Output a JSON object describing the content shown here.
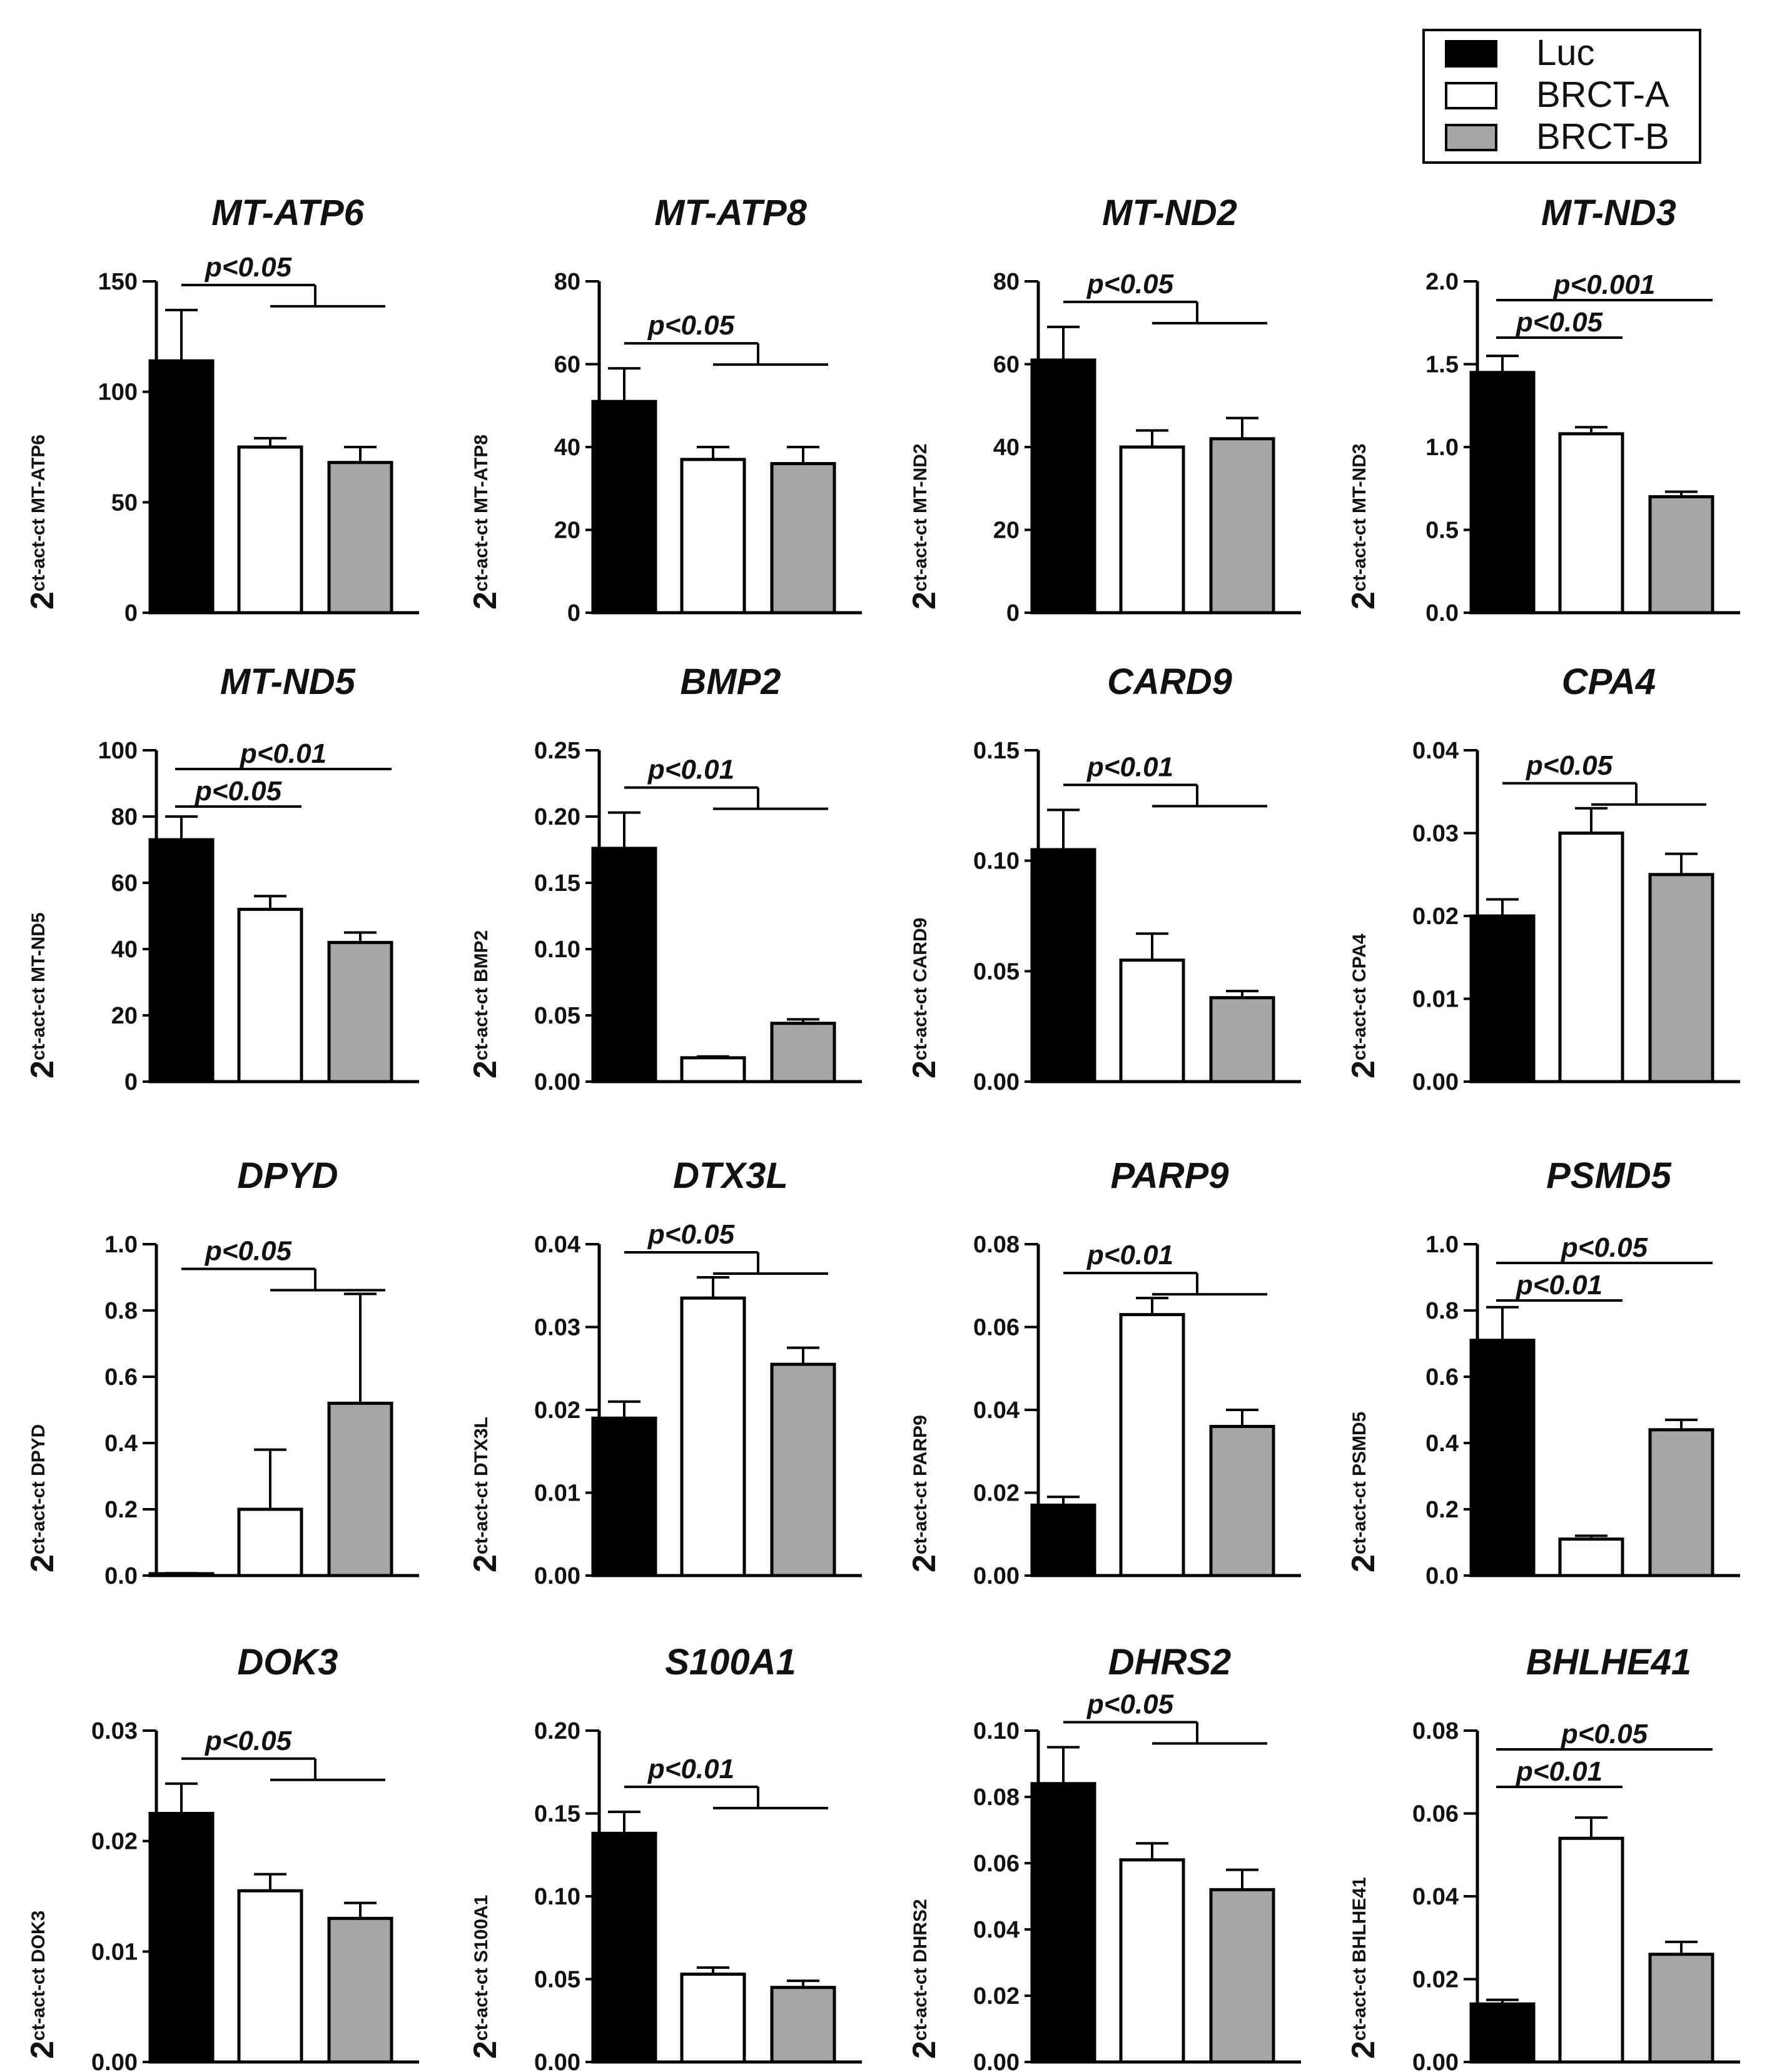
{
  "legend": {
    "items": [
      {
        "label": "Luc",
        "color": "#000000"
      },
      {
        "label": "BRCT-A",
        "color": "#ffffff"
      },
      {
        "label": "BRCT-B",
        "color": "#a6a6a6"
      }
    ]
  },
  "chart_data": [
    {
      "type": "bar",
      "title": "MT-ATP6",
      "ylabel_prefix": "2",
      "ylabel": "ct-act-ct MT-ATP6",
      "categories": [
        "Luc",
        "BRCT-A",
        "BRCT-B"
      ],
      "values": [
        114,
        75,
        68
      ],
      "errors": [
        23,
        4,
        7
      ],
      "ylim": [
        0,
        150
      ],
      "yticks": [
        "0",
        "50",
        "100",
        "150"
      ],
      "significance": [
        {
          "label": "p<0.05",
          "type": "bracket"
        }
      ]
    },
    {
      "type": "bar",
      "title": "MT-ATP8",
      "ylabel_prefix": "2",
      "ylabel": "ct-act-ct MT-ATP8",
      "categories": [
        "Luc",
        "BRCT-A",
        "BRCT-B"
      ],
      "values": [
        51,
        37,
        36
      ],
      "errors": [
        8,
        3,
        4
      ],
      "ylim": [
        0,
        80
      ],
      "yticks": [
        "0",
        "20",
        "40",
        "60",
        "80"
      ],
      "significance": [
        {
          "label": "p<0.05",
          "type": "bracket"
        }
      ]
    },
    {
      "type": "bar",
      "title": "MT-ND2",
      "ylabel_prefix": "2",
      "ylabel": "ct-act-ct MT-ND2",
      "categories": [
        "Luc",
        "BRCT-A",
        "BRCT-B"
      ],
      "values": [
        61,
        40,
        42
      ],
      "errors": [
        8,
        4,
        5
      ],
      "ylim": [
        0,
        80
      ],
      "yticks": [
        "0",
        "20",
        "40",
        "60",
        "80"
      ],
      "significance": [
        {
          "label": "p<0.05",
          "type": "bracket"
        }
      ]
    },
    {
      "type": "bar",
      "title": "MT-ND3",
      "ylabel_prefix": "2",
      "ylabel": "ct-act-ct MT-ND3",
      "categories": [
        "Luc",
        "BRCT-A",
        "BRCT-B"
      ],
      "values": [
        1.45,
        1.08,
        0.7
      ],
      "errors": [
        0.1,
        0.04,
        0.03
      ],
      "ylim": [
        0,
        2.0
      ],
      "yticks": [
        "0.0",
        "0.5",
        "1.0",
        "1.5",
        "2.0"
      ],
      "significance": [
        {
          "label": "p<0.001",
          "type": "line",
          "from": 0,
          "to": 2
        },
        {
          "label": "p<0.05",
          "type": "line",
          "from": 0,
          "to": 1
        }
      ]
    },
    {
      "type": "bar",
      "title": "MT-ND5",
      "ylabel_prefix": "2",
      "ylabel": "ct-act-ct MT-ND5",
      "categories": [
        "Luc",
        "BRCT-A",
        "BRCT-B"
      ],
      "values": [
        73,
        52,
        42
      ],
      "errors": [
        7,
        4,
        3
      ],
      "ylim": [
        0,
        100
      ],
      "yticks": [
        "0",
        "20",
        "40",
        "60",
        "80",
        "100"
      ],
      "significance": [
        {
          "label": "p<0.01",
          "type": "line",
          "from": 0,
          "to": 2
        },
        {
          "label": "p<0.05",
          "type": "line",
          "from": 0,
          "to": 1
        }
      ]
    },
    {
      "type": "bar",
      "title": "BMP2",
      "ylabel_prefix": "2",
      "ylabel": "ct-act-ct BMP2",
      "categories": [
        "Luc",
        "BRCT-A",
        "BRCT-B"
      ],
      "values": [
        0.176,
        0.018,
        0.044
      ],
      "errors": [
        0.027,
        0.001,
        0.003
      ],
      "ylim": [
        0,
        0.25
      ],
      "yticks": [
        "0.00",
        "0.05",
        "0.10",
        "0.15",
        "0.20",
        "0.25"
      ],
      "significance": [
        {
          "label": "p<0.01",
          "type": "bracket"
        }
      ]
    },
    {
      "type": "bar",
      "title": "CARD9",
      "ylabel_prefix": "2",
      "ylabel": "ct-act-ct CARD9",
      "categories": [
        "Luc",
        "BRCT-A",
        "BRCT-B"
      ],
      "values": [
        0.105,
        0.055,
        0.038
      ],
      "errors": [
        0.018,
        0.012,
        0.003
      ],
      "ylim": [
        0,
        0.15
      ],
      "yticks": [
        "0.00",
        "0.05",
        "0.10",
        "0.15"
      ],
      "significance": [
        {
          "label": "p<0.01",
          "type": "bracket"
        }
      ]
    },
    {
      "type": "bar",
      "title": "CPA4",
      "ylabel_prefix": "2",
      "ylabel": "ct-act-ct CPA4",
      "categories": [
        "Luc",
        "BRCT-A",
        "BRCT-B"
      ],
      "values": [
        0.02,
        0.03,
        0.025
      ],
      "errors": [
        0.002,
        0.003,
        0.0025
      ],
      "ylim": [
        0,
        0.04
      ],
      "yticks": [
        "0.00",
        "0.01",
        "0.02",
        "0.03",
        "0.04"
      ],
      "significance": [
        {
          "label": "p<0.05",
          "type": "bracket"
        }
      ]
    },
    {
      "type": "bar",
      "title": "DPYD",
      "ylabel_prefix": "2",
      "ylabel": "ct-act-ct DPYD",
      "categories": [
        "Luc",
        "BRCT-A",
        "BRCT-B"
      ],
      "values": [
        0.005,
        0.2,
        0.52
      ],
      "errors": [
        0.002,
        0.18,
        0.33
      ],
      "ylim": [
        0,
        1.0
      ],
      "yticks": [
        "0.0",
        "0.2",
        "0.4",
        "0.6",
        "0.8",
        "1.0"
      ],
      "significance": [
        {
          "label": "p<0.05",
          "type": "bracket"
        }
      ]
    },
    {
      "type": "bar",
      "title": "DTX3L",
      "ylabel_prefix": "2",
      "ylabel": "ct-act-ct DTX3L",
      "categories": [
        "Luc",
        "BRCT-A",
        "BRCT-B"
      ],
      "values": [
        0.019,
        0.0335,
        0.0255
      ],
      "errors": [
        0.002,
        0.0025,
        0.002
      ],
      "ylim": [
        0,
        0.04
      ],
      "yticks": [
        "0.00",
        "0.01",
        "0.02",
        "0.03",
        "0.04"
      ],
      "significance": [
        {
          "label": "p<0.05",
          "type": "bracket"
        }
      ]
    },
    {
      "type": "bar",
      "title": "PARP9",
      "ylabel_prefix": "2",
      "ylabel": "ct-act-ct PARP9",
      "categories": [
        "Luc",
        "BRCT-A",
        "BRCT-B"
      ],
      "values": [
        0.017,
        0.063,
        0.036
      ],
      "errors": [
        0.002,
        0.004,
        0.004
      ],
      "ylim": [
        0,
        0.08
      ],
      "yticks": [
        "0.00",
        "0.02",
        "0.04",
        "0.06",
        "0.08"
      ],
      "significance": [
        {
          "label": "p<0.01",
          "type": "bracket"
        }
      ]
    },
    {
      "type": "bar",
      "title": "PSMD5",
      "ylabel_prefix": "2",
      "ylabel": "ct-act-ct PSMD5",
      "categories": [
        "Luc",
        "BRCT-A",
        "BRCT-B"
      ],
      "values": [
        0.71,
        0.11,
        0.44
      ],
      "errors": [
        0.1,
        0.01,
        0.03
      ],
      "ylim": [
        0,
        1.0
      ],
      "yticks": [
        "0.0",
        "0.2",
        "0.4",
        "0.6",
        "0.8",
        "1.0"
      ],
      "significance": [
        {
          "label": "p<0.05",
          "type": "line",
          "from": 0,
          "to": 2
        },
        {
          "label": "p<0.01",
          "type": "line",
          "from": 0,
          "to": 1
        }
      ]
    },
    {
      "type": "bar",
      "title": "DOK3",
      "ylabel_prefix": "2",
      "ylabel": "ct-act-ct DOK3",
      "categories": [
        "Luc",
        "BRCT-A",
        "BRCT-B"
      ],
      "values": [
        0.0225,
        0.0155,
        0.013
      ],
      "errors": [
        0.0027,
        0.0015,
        0.0014
      ],
      "ylim": [
        0,
        0.03
      ],
      "yticks": [
        "0.00",
        "0.01",
        "0.02",
        "0.03"
      ],
      "significance": [
        {
          "label": "p<0.05",
          "type": "bracket"
        }
      ]
    },
    {
      "type": "bar",
      "title": "S100A1",
      "ylabel_prefix": "2",
      "ylabel": "ct-act-ct S100A1",
      "categories": [
        "Luc",
        "BRCT-A",
        "BRCT-B"
      ],
      "values": [
        0.138,
        0.053,
        0.045
      ],
      "errors": [
        0.013,
        0.004,
        0.004
      ],
      "ylim": [
        0,
        0.2
      ],
      "yticks": [
        "0.00",
        "0.05",
        "0.10",
        "0.15",
        "0.20"
      ],
      "significance": [
        {
          "label": "p<0.01",
          "type": "bracket"
        }
      ]
    },
    {
      "type": "bar",
      "title": "DHRS2",
      "ylabel_prefix": "2",
      "ylabel": "ct-act-ct DHRS2",
      "categories": [
        "Luc",
        "BRCT-A",
        "BRCT-B"
      ],
      "values": [
        0.084,
        0.061,
        0.052
      ],
      "errors": [
        0.011,
        0.005,
        0.006
      ],
      "ylim": [
        0,
        0.1
      ],
      "yticks": [
        "0.00",
        "0.02",
        "0.04",
        "0.06",
        "0.08",
        "0.10"
      ],
      "significance": [
        {
          "label": "p<0.05",
          "type": "bracket"
        }
      ]
    },
    {
      "type": "bar",
      "title": "BHLHE41",
      "ylabel_prefix": "2",
      "ylabel": "ct-act-ct BHLHE41",
      "categories": [
        "Luc",
        "BRCT-A",
        "BRCT-B"
      ],
      "values": [
        0.014,
        0.054,
        0.026
      ],
      "errors": [
        0.001,
        0.005,
        0.003
      ],
      "ylim": [
        0,
        0.08
      ],
      "yticks": [
        "0.00",
        "0.02",
        "0.04",
        "0.06",
        "0.08"
      ],
      "significance": [
        {
          "label": "p<0.05",
          "type": "line",
          "from": 0,
          "to": 2
        },
        {
          "label": "p<0.01",
          "type": "line",
          "from": 0,
          "to": 1
        }
      ]
    }
  ]
}
